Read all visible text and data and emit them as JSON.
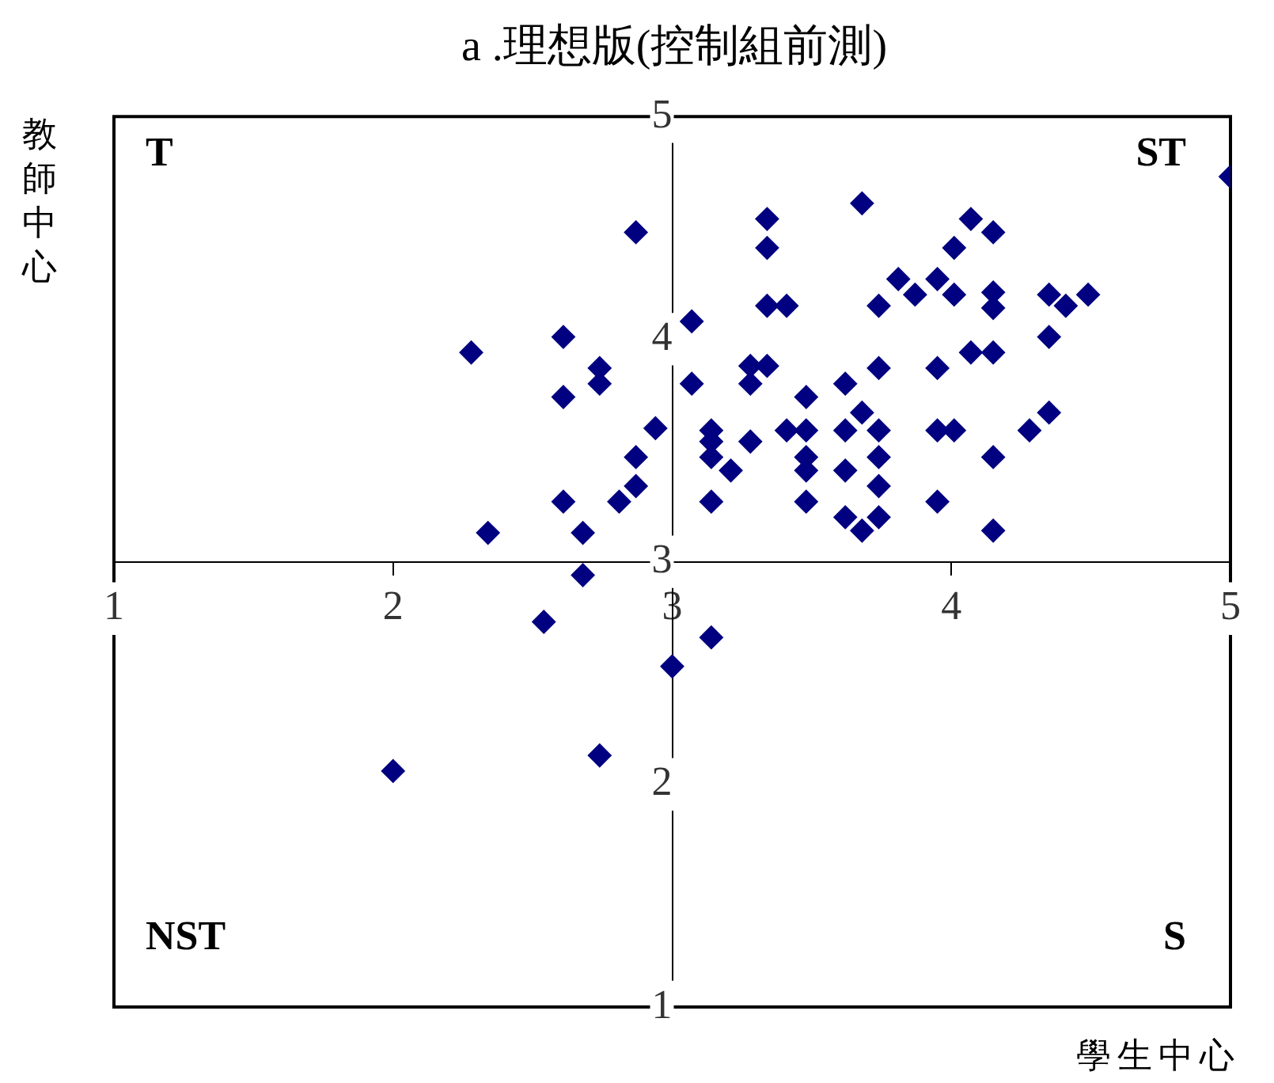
{
  "chart_data": {
    "type": "scatter",
    "title": "a .理想版(控制組前測)",
    "xlabel": "學生中心",
    "ylabel": "教師中心",
    "annotations": [
      "T",
      "ST",
      "NST",
      "S"
    ],
    "xlim": [
      1,
      5
    ],
    "xticks": [
      1,
      2,
      3,
      4,
      5
    ],
    "ylim": [
      1,
      5
    ],
    "yticks": [
      1,
      2,
      3,
      4,
      5
    ],
    "grid": false,
    "legend": false,
    "marker": "diamond",
    "series": [
      {
        "color": "#000080",
        "x": [
          2.28,
          2.0,
          2.34,
          2.54,
          2.61,
          2.61,
          2.61,
          2.68,
          2.68,
          2.74,
          2.74,
          2.74,
          2.81,
          2.87,
          2.87,
          2.87,
          2.94,
          3.0,
          3.07,
          3.07,
          3.14,
          3.14,
          3.14,
          3.14,
          3.14,
          3.21,
          3.28,
          3.28,
          3.28,
          3.34,
          3.34,
          3.34,
          3.34,
          3.41,
          3.41,
          3.48,
          3.48,
          3.48,
          3.48,
          3.48,
          3.62,
          3.62,
          3.62,
          3.62,
          3.68,
          3.68,
          3.68,
          3.74,
          3.74,
          3.74,
          3.74,
          3.74,
          3.74,
          3.81,
          3.87,
          3.95,
          3.95,
          3.95,
          3.95,
          4.01,
          4.01,
          4.01,
          4.07,
          4.07,
          4.15,
          4.15,
          4.15,
          4.15,
          4.15,
          4.15,
          4.28,
          4.35,
          4.35,
          4.35,
          4.41,
          4.49,
          5.0
        ],
        "values": [
          3.94,
          2.06,
          3.13,
          2.73,
          4.01,
          3.74,
          3.27,
          3.13,
          2.94,
          3.87,
          3.8,
          2.13,
          3.27,
          4.48,
          3.47,
          3.34,
          3.6,
          2.53,
          4.08,
          3.8,
          3.59,
          3.54,
          3.47,
          3.27,
          2.66,
          3.41,
          3.54,
          3.88,
          3.8,
          3.88,
          4.54,
          4.41,
          4.15,
          4.15,
          3.59,
          3.74,
          3.59,
          3.47,
          3.41,
          3.27,
          3.8,
          3.59,
          3.41,
          3.2,
          4.61,
          3.67,
          3.14,
          4.15,
          3.87,
          3.59,
          3.47,
          3.34,
          3.2,
          4.27,
          4.2,
          4.27,
          3.87,
          3.59,
          3.27,
          4.41,
          4.2,
          3.59,
          4.54,
          3.94,
          4.48,
          4.21,
          4.14,
          3.94,
          3.47,
          3.14,
          3.59,
          4.2,
          4.01,
          3.67,
          4.15,
          4.2,
          4.73
        ]
      }
    ]
  }
}
